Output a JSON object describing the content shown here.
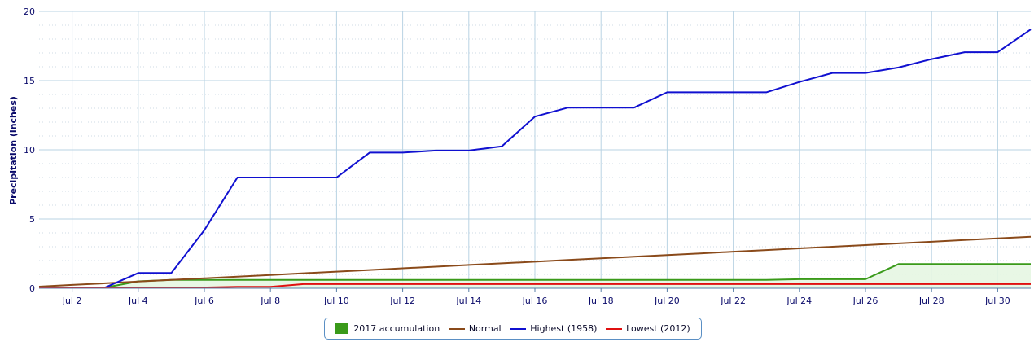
{
  "colors": {
    "accumulation": "#3a9a1a",
    "normal": "#8a4a1a",
    "highest": "#1010d0",
    "lowest": "#e01010",
    "grid": "#b9d3e3",
    "axis": "#0a0a6a"
  },
  "legend": {
    "accumulation": "2017 accumulation",
    "normal": "Normal",
    "highest": "Highest (1958)",
    "lowest": "Lowest (2012)"
  },
  "chart_data": {
    "type": "line",
    "title": "",
    "xlabel": "",
    "ylabel": "Precipitation (inches)",
    "ylim": [
      0,
      20
    ],
    "yticks": [
      0,
      5,
      10,
      15,
      20
    ],
    "x": [
      "Jul 1",
      "Jul 2",
      "Jul 3",
      "Jul 4",
      "Jul 5",
      "Jul 6",
      "Jul 7",
      "Jul 8",
      "Jul 9",
      "Jul 10",
      "Jul 11",
      "Jul 12",
      "Jul 13",
      "Jul 14",
      "Jul 15",
      "Jul 16",
      "Jul 17",
      "Jul 18",
      "Jul 19",
      "Jul 20",
      "Jul 21",
      "Jul 22",
      "Jul 23",
      "Jul 24",
      "Jul 25",
      "Jul 26",
      "Jul 27",
      "Jul 28",
      "Jul 29",
      "Jul 30",
      "Jul 31"
    ],
    "xtick_labels": [
      "Jul 2",
      "Jul 4",
      "Jul 6",
      "Jul 8",
      "Jul 10",
      "Jul 12",
      "Jul 14",
      "Jul 16",
      "Jul 18",
      "Jul 20",
      "Jul 22",
      "Jul 24",
      "Jul 26",
      "Jul 28",
      "Jul 30"
    ],
    "grid": true,
    "legend_position": "bottom",
    "series": [
      {
        "name": "2017 accumulation",
        "kind": "area",
        "values": [
          0.05,
          0.05,
          0.05,
          0.5,
          0.6,
          0.6,
          0.6,
          0.6,
          0.6,
          0.6,
          0.6,
          0.6,
          0.6,
          0.6,
          0.6,
          0.6,
          0.6,
          0.6,
          0.6,
          0.6,
          0.6,
          0.6,
          0.6,
          0.65,
          0.65,
          0.65,
          1.75,
          1.75,
          1.75,
          1.75,
          1.75
        ]
      },
      {
        "name": "Normal",
        "kind": "line",
        "values": [
          0.12,
          0.24,
          0.36,
          0.48,
          0.6,
          0.72,
          0.84,
          0.96,
          1.08,
          1.2,
          1.32,
          1.44,
          1.56,
          1.68,
          1.8,
          1.92,
          2.04,
          2.16,
          2.28,
          2.4,
          2.52,
          2.64,
          2.76,
          2.88,
          3.0,
          3.12,
          3.24,
          3.36,
          3.48,
          3.6,
          3.72
        ]
      },
      {
        "name": "Highest (1958)",
        "kind": "line",
        "values": [
          0.05,
          0.05,
          0.05,
          1.1,
          1.1,
          4.2,
          8.0,
          8.0,
          8.0,
          8.0,
          9.8,
          9.8,
          9.95,
          9.95,
          10.25,
          12.4,
          13.05,
          13.05,
          13.05,
          14.15,
          14.15,
          14.15,
          14.15,
          14.9,
          15.55,
          15.55,
          15.95,
          16.55,
          17.05,
          17.05,
          18.7
        ]
      },
      {
        "name": "Lowest (2012)",
        "kind": "line",
        "values": [
          0.05,
          0.05,
          0.05,
          0.05,
          0.05,
          0.05,
          0.1,
          0.1,
          0.3,
          0.3,
          0.3,
          0.3,
          0.3,
          0.3,
          0.3,
          0.3,
          0.3,
          0.3,
          0.3,
          0.3,
          0.3,
          0.3,
          0.3,
          0.3,
          0.3,
          0.3,
          0.3,
          0.3,
          0.3,
          0.3,
          0.3
        ]
      }
    ]
  }
}
